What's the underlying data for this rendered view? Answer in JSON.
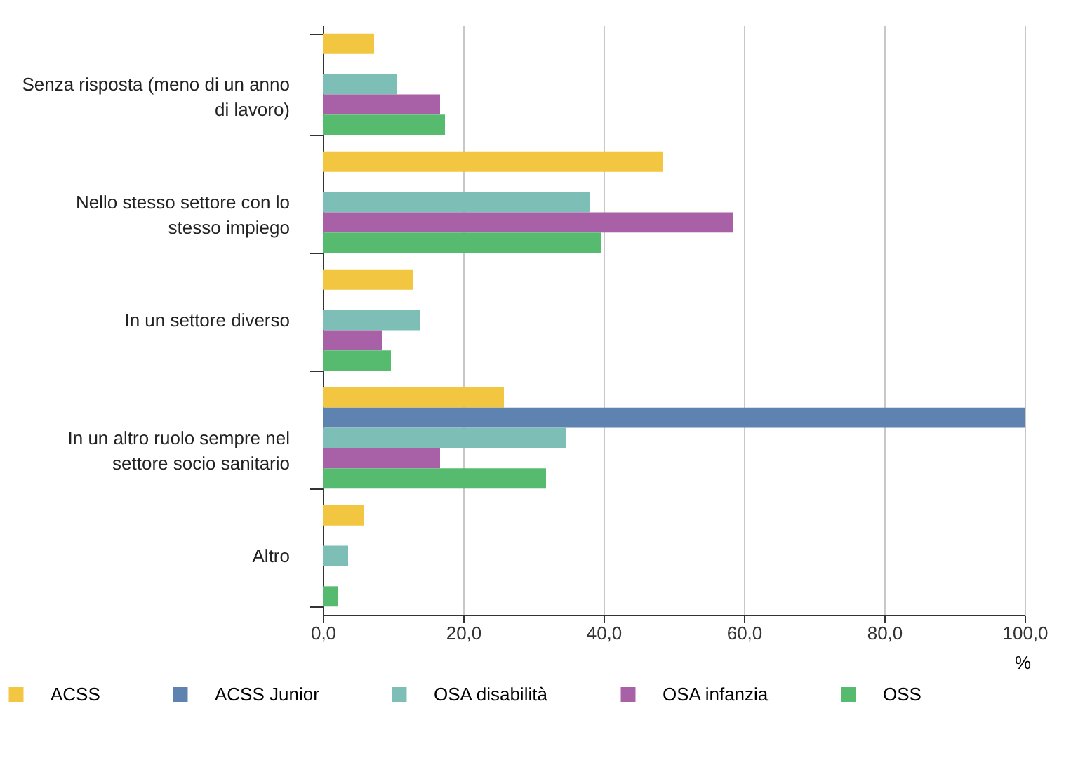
{
  "chart_data": {
    "type": "bar",
    "orientation": "horizontal",
    "xlabel": "%",
    "categories": [
      "Senza risposta (meno di un anno di lavoro)",
      "Nello stesso settore con lo stesso impiego",
      "In un settore diverso",
      "In un altro ruolo sempre nel settore socio sanitario",
      "Altro"
    ],
    "series": [
      {
        "name": "ACSS",
        "color": "#f2c640",
        "values": [
          7.3,
          48.5,
          12.9,
          25.8,
          5.9
        ]
      },
      {
        "name": "ACSS Junior",
        "color": "#5e83b0",
        "values": [
          null,
          null,
          null,
          100,
          null
        ]
      },
      {
        "name": "OSA disabilità",
        "color": "#7dbfb7",
        "values": [
          10.5,
          38.0,
          13.9,
          34.7,
          3.6
        ]
      },
      {
        "name": "OSA infanzia",
        "color": "#a860a6",
        "values": [
          16.7,
          58.4,
          8.4,
          16.7,
          null
        ]
      },
      {
        "name": "OSS",
        "color": "#57bb6f",
        "values": [
          17.4,
          39.6,
          9.7,
          31.8,
          2.1
        ]
      }
    ],
    "xlim": [
      0,
      100
    ],
    "xticks": [
      {
        "value": 0,
        "label": "0,0"
      },
      {
        "value": 20,
        "label": "20,0"
      },
      {
        "value": 40,
        "label": "40,0"
      },
      {
        "value": 60,
        "label": "60,0"
      },
      {
        "value": 80,
        "label": "80,0"
      },
      {
        "value": 100,
        "label": "100,0"
      }
    ],
    "grid": "x",
    "legend": "bottom"
  }
}
